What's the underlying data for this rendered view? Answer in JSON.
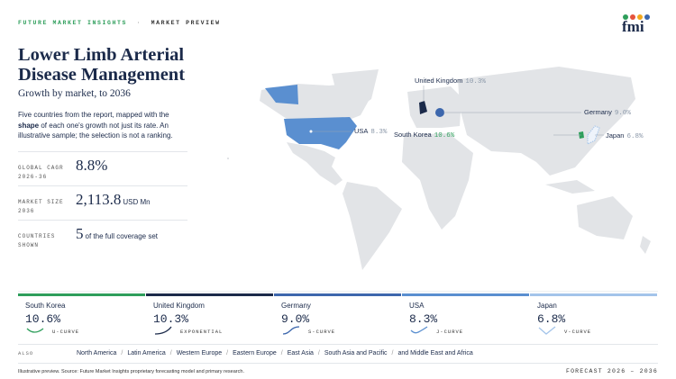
{
  "header": {
    "brand": "FUTURE MARKET INSIGHTS",
    "separator": "·",
    "section": "MARKET PREVIEW",
    "logo": "fmi"
  },
  "title": "Lower Limb Arterial Disease Management",
  "subtitle": "Growth by market, to 2036",
  "description": {
    "before": "Five countries from the report, mapped with the",
    "bold": "shape",
    "after": "of each one's growth not just its rate. An illustrative sample; the selection is not a ranking."
  },
  "stats": [
    {
      "label": "GLOBAL CAGR 2026-36",
      "value": "8.8%"
    },
    {
      "label": "MARKET SIZE 2036",
      "value": "2,113.8",
      "unit": "USD Mn"
    },
    {
      "label": "COUNTRIES SHOWN",
      "value": "5",
      "unit": "of the full coverage set"
    }
  ],
  "markets": [
    {
      "country": "South Korea",
      "cagr": "10.6%",
      "curve": "U-CURVE",
      "color": "#2e9e5b"
    },
    {
      "country": "United Kingdom",
      "cagr": "10.3%",
      "curve": "EXPONENTIAL",
      "color": "#1b2a4a"
    },
    {
      "country": "Germany",
      "cagr": "9.0%",
      "curve": "S-CURVE",
      "color": "#3d67ad"
    },
    {
      "country": "USA",
      "cagr": "8.3%",
      "curve": "J-CURVE",
      "color": "#5a8fd0"
    },
    {
      "country": "Japan",
      "cagr": "6.8%",
      "curve": "V-CURVE",
      "color": "#a3c4ea"
    }
  ],
  "also": {
    "label": "ALSO",
    "regions": [
      "North America",
      "Latin America",
      "Western Europe",
      "Eastern Europe",
      "East Asia",
      "South Asia and Pacific",
      "and Middle East and Africa"
    ]
  },
  "footer": {
    "source": "Illustrative preview. Source: Future Market Insights proprietary forecasting model and primary research.",
    "forecast": "FORECAST 2026 – 2036"
  }
}
